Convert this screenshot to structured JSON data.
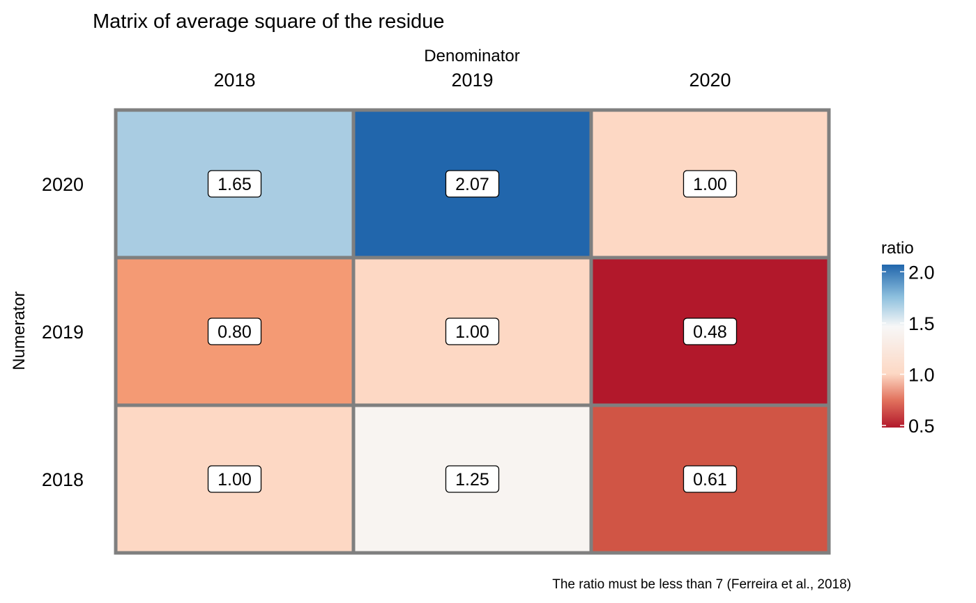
{
  "chart_data": {
    "type": "heatmap",
    "title": "Matrix of average square of the residue",
    "xlabel": "Denominator",
    "ylabel": "Numerator",
    "x_categories": [
      "2018",
      "2019",
      "2020"
    ],
    "y_categories": [
      "2020",
      "2019",
      "2018"
    ],
    "values": [
      [
        1.65,
        2.07,
        1.0
      ],
      [
        0.8,
        1.0,
        0.48
      ],
      [
        1.0,
        1.25,
        0.61
      ]
    ],
    "cell_labels": [
      [
        "1.65",
        "2.07",
        "1.00"
      ],
      [
        "0.80",
        "1.00",
        "0.48"
      ],
      [
        "1.00",
        "1.25",
        "0.61"
      ]
    ],
    "legend": {
      "title": "ratio",
      "range": [
        0.48,
        2.07
      ],
      "ticks": [
        2.0,
        1.5,
        1.0,
        0.5
      ],
      "tick_labels": [
        "2.0",
        "1.5",
        "1.0",
        "0.5"
      ],
      "placement": "right"
    },
    "caption": "The ratio must be less than 7 (Ferreira et al., 2018)",
    "colors": {
      "high": "#2166ac",
      "mid": "#f7f7f7",
      "low": "#b2182b",
      "cell_border": "#7f7f7f"
    },
    "cell_colors": [
      [
        "#a9cce2",
        "#2166ac",
        "#fdd8c4"
      ],
      [
        "#f49a74",
        "#fdd8c4",
        "#b2182b"
      ],
      [
        "#fdd8c4",
        "#f8f4f1",
        "#d05545"
      ]
    ]
  }
}
